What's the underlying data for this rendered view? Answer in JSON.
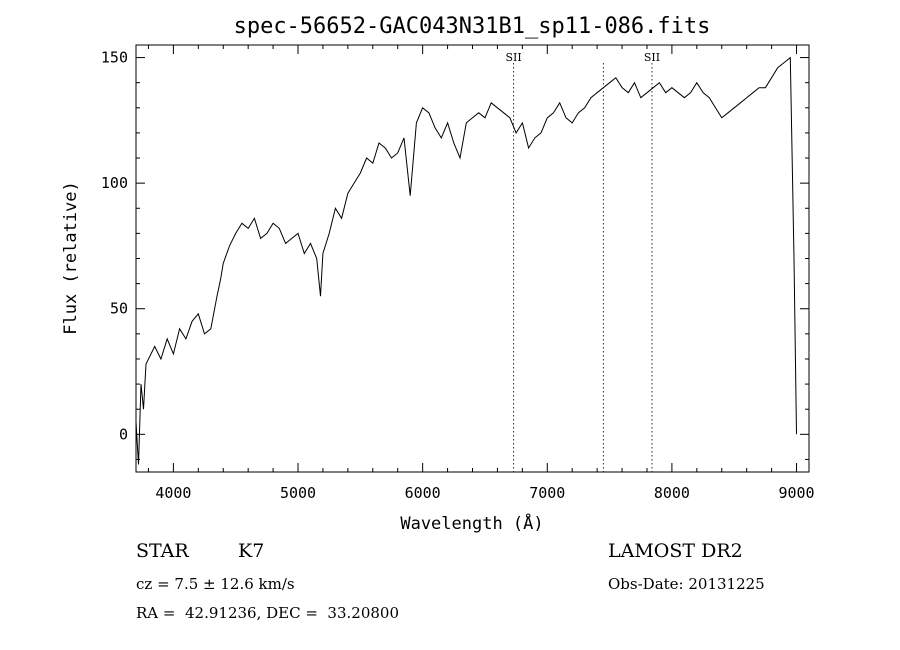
{
  "chart_data": {
    "type": "line",
    "title": "spec-56652-GAC043N31B1_sp11-086.fits",
    "xlabel": "Wavelength (Å)",
    "ylabel": "Flux (relative)",
    "xlim": [
      3700,
      9100
    ],
    "ylim": [
      -15,
      155
    ],
    "x_ticks": [
      4000,
      5000,
      6000,
      7000,
      8000,
      9000
    ],
    "y_ticks": [
      0,
      50,
      100,
      150
    ],
    "grid": false,
    "series": [
      {
        "x": [
          3700,
          3720,
          3740,
          3760,
          3780,
          3800,
          3850,
          3900,
          3950,
          4000,
          4050,
          4100,
          4150,
          4200,
          4250,
          4300,
          4350,
          4380,
          4400,
          4450,
          4500,
          4550,
          4600,
          4650,
          4700,
          4750,
          4800,
          4850,
          4900,
          4950,
          5000,
          5050,
          5100,
          5150,
          5180,
          5200,
          5250,
          5300,
          5350,
          5400,
          5450,
          5500,
          5550,
          5600,
          5650,
          5700,
          5750,
          5800,
          5850,
          5900,
          5950,
          6000,
          6050,
          6100,
          6150,
          6200,
          6250,
          6300,
          6350,
          6400,
          6450,
          6500,
          6550,
          6600,
          6650,
          6700,
          6750,
          6800,
          6850,
          6900,
          6950,
          7000,
          7050,
          7100,
          7150,
          7200,
          7250,
          7300,
          7350,
          7400,
          7450,
          7500,
          7550,
          7600,
          7650,
          7700,
          7750,
          7800,
          7850,
          7900,
          7950,
          8000,
          8050,
          8100,
          8150,
          8200,
          8250,
          8300,
          8350,
          8400,
          8450,
          8500,
          8550,
          8600,
          8650,
          8700,
          8750,
          8800,
          8850,
          8900,
          8950,
          8980,
          9000
        ],
        "y": [
          5,
          -12,
          20,
          10,
          28,
          30,
          35,
          30,
          38,
          32,
          42,
          38,
          45,
          48,
          40,
          42,
          55,
          62,
          68,
          75,
          80,
          84,
          82,
          86,
          78,
          80,
          84,
          82,
          76,
          78,
          80,
          72,
          76,
          70,
          55,
          72,
          80,
          90,
          86,
          96,
          100,
          104,
          110,
          108,
          116,
          114,
          110,
          112,
          118,
          95,
          124,
          130,
          128,
          122,
          118,
          124,
          116,
          110,
          124,
          126,
          128,
          126,
          132,
          130,
          128,
          126,
          120,
          124,
          114,
          118,
          120,
          126,
          128,
          132,
          126,
          124,
          128,
          130,
          134,
          136,
          138,
          140,
          142,
          138,
          136,
          140,
          134,
          136,
          138,
          140,
          136,
          138,
          136,
          134,
          136,
          140,
          136,
          134,
          130,
          126,
          128,
          130,
          132,
          134,
          136,
          138,
          138,
          142,
          146,
          148,
          150,
          70,
          0
        ]
      }
    ],
    "lines": [
      {
        "label": "SII",
        "x": 6730
      },
      {
        "label": "",
        "x": 7450
      },
      {
        "label": "SII",
        "x": 7840
      }
    ]
  },
  "info": {
    "object_class": "STAR",
    "subclass": "K7",
    "survey": "LAMOST DR2",
    "cz": "cz = 7.5 ± 12.6 km/s",
    "obs_date": "Obs-Date: 20131225",
    "coords": "RA =  42.91236, DEC =  33.20800"
  }
}
